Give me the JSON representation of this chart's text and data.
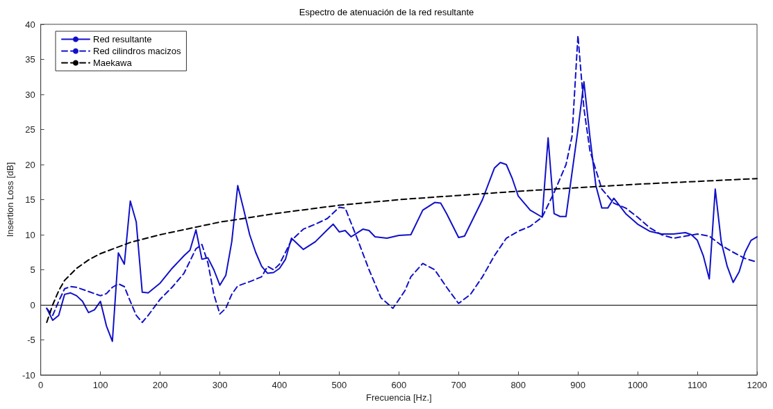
{
  "chart_data": {
    "type": "line",
    "title": "Espectro de atenuación de la red resultante",
    "xlabel": "Frecuencia [Hz.]",
    "ylabel": "Insertion Loss [dB]",
    "xlim": [
      0,
      1200
    ],
    "xticks": [
      0,
      100,
      200,
      300,
      400,
      500,
      600,
      700,
      800,
      900,
      1000,
      1100,
      1200
    ],
    "ylim": [
      -10,
      40
    ],
    "yticks": [
      -10,
      -5,
      0,
      5,
      10,
      15,
      20,
      25,
      30,
      35,
      40
    ],
    "grid": false,
    "legend": "top left",
    "marker": "none",
    "ref_lines": [
      {
        "axis": "y",
        "value": 0,
        "color": "#000000",
        "line_style": "solid"
      }
    ],
    "series": [
      {
        "name": "Red resultante",
        "color": "#1010c8",
        "line_style": "solid",
        "x": [
          10,
          20,
          30,
          40,
          50,
          60,
          70,
          80,
          90,
          100,
          110,
          120,
          130,
          140,
          150,
          160,
          170,
          180,
          200,
          220,
          240,
          250,
          260,
          270,
          280,
          290,
          300,
          310,
          320,
          330,
          340,
          350,
          360,
          370,
          380,
          390,
          400,
          410,
          420,
          440,
          460,
          480,
          490,
          500,
          510,
          520,
          540,
          550,
          560,
          580,
          600,
          620,
          640,
          660,
          670,
          680,
          700,
          710,
          740,
          760,
          770,
          780,
          790,
          800,
          820,
          840,
          850,
          860,
          870,
          880,
          900,
          910,
          920,
          930,
          940,
          950,
          960,
          980,
          1000,
          1020,
          1040,
          1060,
          1080,
          1090,
          1100,
          1110,
          1120,
          1130,
          1140,
          1150,
          1160,
          1170,
          1180,
          1190,
          1200
        ],
        "values": [
          -0.5,
          -2.2,
          -1.5,
          1.5,
          1.7,
          1.3,
          0.5,
          -1.1,
          -0.7,
          0.5,
          -3,
          -5.2,
          7.4,
          5.8,
          14.8,
          11.8,
          1.8,
          1.7,
          3.1,
          5.2,
          7,
          7.8,
          10.7,
          6.5,
          6.7,
          5,
          2.8,
          4.2,
          9,
          17,
          13.6,
          10,
          7.5,
          5.5,
          4.5,
          4.6,
          5.2,
          6.5,
          9.5,
          7.9,
          9,
          10.7,
          11.5,
          10.4,
          10.6,
          9.7,
          10.8,
          10.6,
          9.7,
          9.5,
          9.9,
          10,
          13.5,
          14.6,
          14.5,
          13,
          9.6,
          9.8,
          15,
          19.5,
          20.3,
          20,
          18,
          15.5,
          13.5,
          12.5,
          23.8,
          13,
          12.6,
          12.6,
          25,
          31.8,
          24,
          17,
          13.8,
          13.8,
          15.2,
          13,
          11.5,
          10.5,
          10.1,
          10.1,
          10.3,
          10,
          9.2,
          7,
          3.7,
          16.5,
          9,
          5.5,
          3.2,
          4.7,
          7.5,
          9.2,
          9.7
        ]
      },
      {
        "name": "Red cilindros macizos",
        "color": "#1010c8",
        "line_style": "dashed",
        "x": [
          10,
          20,
          30,
          40,
          50,
          60,
          80,
          100,
          110,
          120,
          130,
          140,
          150,
          160,
          170,
          180,
          200,
          220,
          240,
          260,
          270,
          280,
          290,
          300,
          310,
          320,
          330,
          350,
          370,
          380,
          390,
          400,
          420,
          440,
          460,
          480,
          500,
          510,
          530,
          550,
          570,
          590,
          610,
          620,
          640,
          660,
          680,
          700,
          720,
          740,
          760,
          780,
          800,
          820,
          840,
          860,
          880,
          890,
          900,
          910,
          920,
          940,
          960,
          980,
          1000,
          1020,
          1040,
          1060,
          1080,
          1100,
          1120,
          1140,
          1160,
          1180,
          1200
        ],
        "values": [
          -0.5,
          -1.5,
          0.5,
          2.3,
          2.6,
          2.5,
          1.9,
          1.3,
          1.6,
          2.5,
          3,
          2.6,
          0.5,
          -1.5,
          -2.5,
          -1.5,
          0.8,
          2.5,
          4.5,
          8,
          8.6,
          6,
          1.5,
          -1.3,
          -0.5,
          1.5,
          2.7,
          3.3,
          4,
          5.5,
          5,
          5.8,
          9.2,
          10.8,
          11.5,
          12.3,
          13.9,
          13.8,
          9.5,
          5,
          1,
          -0.5,
          2,
          4,
          5.9,
          5,
          2.5,
          0.2,
          1.5,
          4,
          7,
          9.5,
          10.5,
          11.2,
          12.5,
          16,
          20,
          24,
          38.4,
          28,
          22,
          16.5,
          14.5,
          13.8,
          12.5,
          11,
          10,
          9.5,
          9.8,
          10.1,
          9.8,
          8.5,
          7.5,
          6.6,
          6.1
        ]
      },
      {
        "name": "Maekawa",
        "color": "#000000",
        "line_style": "dashed",
        "x": [
          10,
          20,
          30,
          40,
          60,
          80,
          100,
          150,
          200,
          300,
          400,
          500,
          600,
          700,
          800,
          900,
          1000,
          1100,
          1200
        ],
        "values": [
          -2.5,
          0,
          2,
          3.5,
          5.2,
          6.4,
          7.3,
          8.9,
          10,
          11.8,
          13.1,
          14.2,
          15,
          15.6,
          16.2,
          16.7,
          17.2,
          17.6,
          18
        ]
      }
    ]
  }
}
